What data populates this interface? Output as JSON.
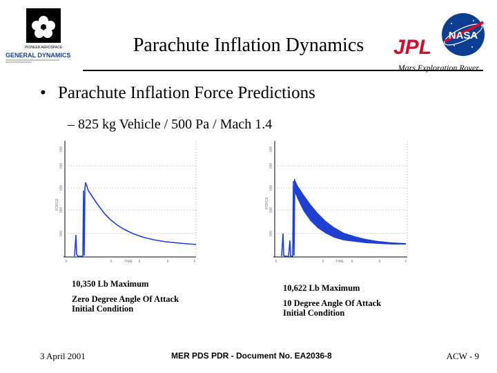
{
  "header": {
    "left_logo_text_top": "PIONEER AEROSPACE",
    "left_logo_text_brand": "GENERAL DYNAMICS",
    "title": "Parachute Inflation Dynamics",
    "jpl_logo_text": "JPL",
    "nasa_logo_text": "NASA",
    "subtitle": "Mars Exploration Rover"
  },
  "bullet": {
    "marker": "•",
    "text": "Parachute Inflation Force Predictions"
  },
  "subbullet": {
    "text": "– 825 kg Vehicle / 500 Pa / Mach 1.4"
  },
  "plots": [
    {
      "caption_max": "10,350 Lb Maximum",
      "caption_line1": "Zero Degree Angle Of Attack",
      "caption_line2": "Initial Condition",
      "y_axis_label": "FORCE",
      "x_axis_label": "TIME"
    },
    {
      "caption_max": "10,622 Lb Maximum",
      "caption_line1": "10 Degree Angle Of Attack",
      "caption_line2": "Initial Condition",
      "y_axis_label": "FORCE",
      "x_axis_label": "TIME"
    }
  ],
  "footer": {
    "date": "3 April 2001",
    "document": "MER PDS PDR - Document No. EA2036-8",
    "page": "ACW - 9"
  },
  "colors": {
    "trace": "#1f3fd0",
    "text": "#000000",
    "nasa_blue": "#0b3d91",
    "jpl_red": "#c8102e"
  }
}
